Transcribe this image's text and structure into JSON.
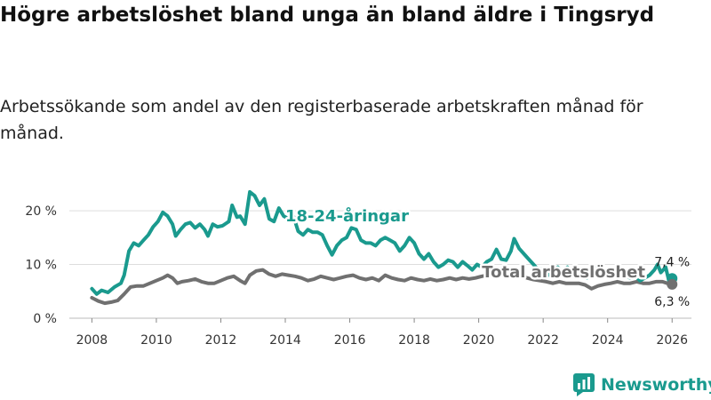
{
  "title": "Högre arbetslöshet bland unga än bland äldre i Tingsryd",
  "subtitle": "Arbetssökande som andel av den registerbaserade arbetskraften månad för månad.",
  "brand": {
    "name": "Newsworthy",
    "icon": "newsworthy-logo-icon"
  },
  "colors": {
    "youth": "#1a9a8e",
    "total": "#707070",
    "grid": "#dddddd"
  },
  "chart_data": {
    "type": "line",
    "title": "Högre arbetslöshet bland unga än bland äldre i Tingsryd",
    "subtitle": "Arbetssökande som andel av den registerbaserade arbetskraften månad för månad.",
    "xlabel": "",
    "ylabel": "",
    "xlim": [
      2007.3,
      2026.6
    ],
    "ylim": [
      0,
      22
    ],
    "x_ticks": [
      2008,
      2010,
      2012,
      2014,
      2016,
      2018,
      2020,
      2022,
      2024,
      2026
    ],
    "x_tick_labels": [
      "2008",
      "2010",
      "2012",
      "2014",
      "2016",
      "2018",
      "2020",
      "2022",
      "2024",
      "2026"
    ],
    "y_ticks": [
      0,
      10,
      20
    ],
    "y_tick_labels": [
      "0 %",
      "10 %",
      "20 %"
    ],
    "grid": true,
    "series": [
      {
        "name": "18-24-åringar",
        "color": "#1a9a8e",
        "end_label": "7,4 %",
        "points": [
          [
            2008.0,
            5.5
          ],
          [
            2008.15,
            4.5
          ],
          [
            2008.3,
            5.2
          ],
          [
            2008.5,
            4.8
          ],
          [
            2008.7,
            5.8
          ],
          [
            2008.9,
            6.5
          ],
          [
            2009.0,
            8.0
          ],
          [
            2009.15,
            12.5
          ],
          [
            2009.3,
            14.0
          ],
          [
            2009.45,
            13.5
          ],
          [
            2009.6,
            14.5
          ],
          [
            2009.75,
            15.5
          ],
          [
            2009.9,
            17.0
          ],
          [
            2010.05,
            18.0
          ],
          [
            2010.2,
            19.7
          ],
          [
            2010.35,
            19.0
          ],
          [
            2010.5,
            17.5
          ],
          [
            2010.6,
            15.3
          ],
          [
            2010.75,
            16.5
          ],
          [
            2010.9,
            17.5
          ],
          [
            2011.05,
            17.8
          ],
          [
            2011.2,
            16.8
          ],
          [
            2011.35,
            17.5
          ],
          [
            2011.5,
            16.5
          ],
          [
            2011.6,
            15.3
          ],
          [
            2011.75,
            17.5
          ],
          [
            2011.9,
            17.0
          ],
          [
            2012.05,
            17.2
          ],
          [
            2012.25,
            18.0
          ],
          [
            2012.35,
            21.0
          ],
          [
            2012.5,
            18.8
          ],
          [
            2012.6,
            19.0
          ],
          [
            2012.75,
            17.5
          ],
          [
            2012.9,
            23.5
          ],
          [
            2013.05,
            22.8
          ],
          [
            2013.2,
            21.0
          ],
          [
            2013.35,
            22.2
          ],
          [
            2013.5,
            18.5
          ],
          [
            2013.65,
            18.0
          ],
          [
            2013.8,
            20.5
          ],
          [
            2013.95,
            19.0
          ],
          [
            2014.1,
            18.5
          ],
          [
            2014.25,
            19.0
          ],
          [
            2014.4,
            16.2
          ],
          [
            2014.55,
            15.5
          ],
          [
            2014.7,
            16.5
          ],
          [
            2014.85,
            16.0
          ],
          [
            2015.0,
            16.0
          ],
          [
            2015.15,
            15.5
          ],
          [
            2015.3,
            13.5
          ],
          [
            2015.45,
            11.8
          ],
          [
            2015.6,
            13.5
          ],
          [
            2015.75,
            14.5
          ],
          [
            2015.9,
            15.0
          ],
          [
            2016.05,
            16.8
          ],
          [
            2016.2,
            16.5
          ],
          [
            2016.35,
            14.5
          ],
          [
            2016.5,
            14.0
          ],
          [
            2016.65,
            14.0
          ],
          [
            2016.8,
            13.5
          ],
          [
            2016.95,
            14.5
          ],
          [
            2017.1,
            15.0
          ],
          [
            2017.25,
            14.5
          ],
          [
            2017.4,
            14.0
          ],
          [
            2017.55,
            12.5
          ],
          [
            2017.7,
            13.5
          ],
          [
            2017.85,
            15.0
          ],
          [
            2018.0,
            14.0
          ],
          [
            2018.15,
            12.0
          ],
          [
            2018.3,
            11.0
          ],
          [
            2018.45,
            12.0
          ],
          [
            2018.6,
            10.5
          ],
          [
            2018.75,
            9.5
          ],
          [
            2018.9,
            10.0
          ],
          [
            2019.05,
            10.8
          ],
          [
            2019.2,
            10.5
          ],
          [
            2019.35,
            9.5
          ],
          [
            2019.5,
            10.5
          ],
          [
            2019.65,
            9.8
          ],
          [
            2019.8,
            9.0
          ],
          [
            2019.95,
            10.0
          ],
          [
            2020.1,
            9.5
          ],
          [
            2020.25,
            10.5
          ],
          [
            2020.4,
            11.0
          ],
          [
            2020.55,
            12.8
          ],
          [
            2020.7,
            11.0
          ],
          [
            2020.85,
            10.8
          ],
          [
            2021.0,
            12.5
          ],
          [
            2021.1,
            14.8
          ],
          [
            2021.25,
            13.0
          ],
          [
            2021.4,
            12.0
          ],
          [
            2021.55,
            11.0
          ],
          [
            2021.7,
            10.0
          ],
          [
            2021.85,
            9.0
          ],
          [
            2022.0,
            9.2
          ],
          [
            2022.15,
            8.0
          ],
          [
            2022.3,
            9.0
          ],
          [
            2022.45,
            9.5
          ],
          [
            2022.6,
            8.5
          ],
          [
            2022.75,
            9.5
          ],
          [
            2022.9,
            8.5
          ],
          [
            2023.05,
            9.0
          ],
          [
            2023.2,
            8.0
          ],
          [
            2023.35,
            7.5
          ],
          [
            2023.5,
            9.0
          ],
          [
            2023.65,
            9.5
          ],
          [
            2023.8,
            8.0
          ],
          [
            2023.95,
            9.0
          ],
          [
            2024.1,
            8.5
          ],
          [
            2024.25,
            9.0
          ],
          [
            2024.4,
            8.5
          ],
          [
            2024.55,
            8.0
          ],
          [
            2024.7,
            7.5
          ],
          [
            2024.85,
            8.0
          ],
          [
            2025.0,
            7.0
          ],
          [
            2025.15,
            7.5
          ],
          [
            2025.3,
            8.0
          ],
          [
            2025.45,
            9.0
          ],
          [
            2025.55,
            10.0
          ],
          [
            2025.65,
            8.5
          ],
          [
            2025.8,
            9.5
          ],
          [
            2025.9,
            7.0
          ],
          [
            2026.0,
            7.4
          ]
        ]
      },
      {
        "name": "Total arbetslöshet",
        "color": "#707070",
        "end_label": "6,3 %",
        "points": [
          [
            2008.0,
            3.8
          ],
          [
            2008.2,
            3.2
          ],
          [
            2008.4,
            2.8
          ],
          [
            2008.6,
            3.0
          ],
          [
            2008.8,
            3.3
          ],
          [
            2009.0,
            4.5
          ],
          [
            2009.2,
            5.8
          ],
          [
            2009.4,
            6.0
          ],
          [
            2009.6,
            6.0
          ],
          [
            2009.8,
            6.5
          ],
          [
            2010.0,
            7.0
          ],
          [
            2010.2,
            7.5
          ],
          [
            2010.35,
            8.0
          ],
          [
            2010.5,
            7.5
          ],
          [
            2010.65,
            6.5
          ],
          [
            2010.8,
            6.8
          ],
          [
            2011.0,
            7.0
          ],
          [
            2011.2,
            7.3
          ],
          [
            2011.4,
            6.8
          ],
          [
            2011.6,
            6.5
          ],
          [
            2011.8,
            6.5
          ],
          [
            2012.0,
            7.0
          ],
          [
            2012.2,
            7.5
          ],
          [
            2012.4,
            7.8
          ],
          [
            2012.6,
            7.0
          ],
          [
            2012.75,
            6.5
          ],
          [
            2012.9,
            8.0
          ],
          [
            2013.1,
            8.8
          ],
          [
            2013.3,
            9.0
          ],
          [
            2013.5,
            8.2
          ],
          [
            2013.7,
            7.8
          ],
          [
            2013.9,
            8.2
          ],
          [
            2014.1,
            8.0
          ],
          [
            2014.3,
            7.8
          ],
          [
            2014.5,
            7.5
          ],
          [
            2014.7,
            7.0
          ],
          [
            2014.9,
            7.3
          ],
          [
            2015.1,
            7.8
          ],
          [
            2015.3,
            7.5
          ],
          [
            2015.5,
            7.2
          ],
          [
            2015.7,
            7.5
          ],
          [
            2015.9,
            7.8
          ],
          [
            2016.1,
            8.0
          ],
          [
            2016.3,
            7.5
          ],
          [
            2016.5,
            7.2
          ],
          [
            2016.7,
            7.5
          ],
          [
            2016.9,
            7.0
          ],
          [
            2017.1,
            8.0
          ],
          [
            2017.3,
            7.5
          ],
          [
            2017.5,
            7.2
          ],
          [
            2017.7,
            7.0
          ],
          [
            2017.9,
            7.5
          ],
          [
            2018.1,
            7.2
          ],
          [
            2018.3,
            7.0
          ],
          [
            2018.5,
            7.3
          ],
          [
            2018.7,
            7.0
          ],
          [
            2018.9,
            7.2
          ],
          [
            2019.1,
            7.5
          ],
          [
            2019.3,
            7.2
          ],
          [
            2019.5,
            7.5
          ],
          [
            2019.7,
            7.3
          ],
          [
            2019.9,
            7.5
          ],
          [
            2020.1,
            7.8
          ],
          [
            2020.3,
            8.0
          ],
          [
            2020.5,
            8.5
          ],
          [
            2020.7,
            8.2
          ],
          [
            2020.9,
            8.0
          ],
          [
            2021.1,
            8.3
          ],
          [
            2021.3,
            8.0
          ],
          [
            2021.5,
            7.5
          ],
          [
            2021.7,
            7.2
          ],
          [
            2021.9,
            7.0
          ],
          [
            2022.1,
            6.8
          ],
          [
            2022.3,
            6.5
          ],
          [
            2022.5,
            6.8
          ],
          [
            2022.7,
            6.5
          ],
          [
            2022.9,
            6.5
          ],
          [
            2023.1,
            6.5
          ],
          [
            2023.3,
            6.2
          ],
          [
            2023.5,
            5.5
          ],
          [
            2023.7,
            6.0
          ],
          [
            2023.9,
            6.3
          ],
          [
            2024.1,
            6.5
          ],
          [
            2024.3,
            6.8
          ],
          [
            2024.5,
            6.5
          ],
          [
            2024.7,
            6.5
          ],
          [
            2024.9,
            6.8
          ],
          [
            2025.1,
            6.5
          ],
          [
            2025.3,
            6.5
          ],
          [
            2025.5,
            6.8
          ],
          [
            2025.7,
            6.8
          ],
          [
            2025.85,
            6.5
          ],
          [
            2026.0,
            6.3
          ]
        ]
      }
    ],
    "annotations": [
      {
        "text": "18-24-åringar",
        "series": "18-24-åringar",
        "at": [
          2014.0,
          18.0
        ]
      },
      {
        "text": "Total arbetslöshet",
        "series": "Total arbetslöshet",
        "at": [
          2020.1,
          7.6
        ]
      }
    ]
  }
}
